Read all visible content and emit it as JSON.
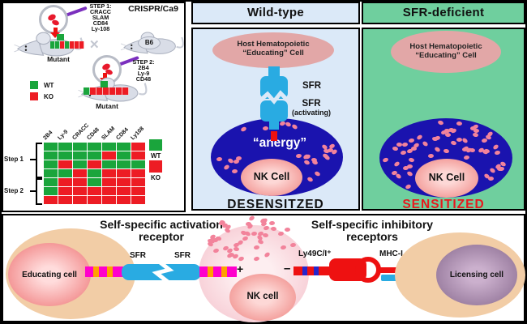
{
  "colors": {
    "wt_green": "#1aa53c",
    "ko_red": "#ed1c24",
    "receptor_blue": "#29abe2",
    "nk_blue": "#1a13ae",
    "granule_pink": "#f2839b",
    "host_cell_pink": "#e2a7a7",
    "panel_blue": "#dbe9f8",
    "panel_green": "#6fcf9e",
    "magenta": "#ff00cc",
    "stripe_orange": "#ffa200",
    "receptor_red": "#ee1111",
    "stripe_blue": "#2626cc",
    "status_red": "#e8181d",
    "cell_tan": "#f2cda6",
    "needle_purple": "#7b2fbe"
  },
  "left_panel": {
    "title": "CRISPR/Ca9",
    "step1": {
      "label": "STEP 1:",
      "genes": [
        "CRACC",
        "SLAM",
        "CD84",
        "Ly-108"
      ]
    },
    "step2": {
      "label": "STEP 2:",
      "genes": [
        "2B4",
        "Ly-9",
        "CD48"
      ]
    },
    "mutant1_label": "Mutant",
    "b6_label": "B6",
    "cross": "✕",
    "mutant2_label": "Mutant",
    "legend": {
      "wt": "WT",
      "ko": "KO"
    },
    "mouse1_bar": [
      "G",
      "G",
      "R",
      "G",
      "R",
      "R",
      "R"
    ],
    "mouse2_bar": [
      "G",
      "R",
      "R",
      "R",
      "R",
      "R",
      "R"
    ]
  },
  "chart_data": {
    "type": "heatmap",
    "columns": [
      "2B4",
      "Ly-9",
      "CRACC",
      "CD48",
      "SLAM",
      "CD84",
      "Ly108"
    ],
    "row_groups": [
      {
        "label": "Step 1",
        "rows": 4
      },
      {
        "label": "Step 2",
        "rows": 3
      }
    ],
    "matrix": [
      [
        "WT",
        "WT",
        "WT",
        "WT",
        "WT",
        "WT",
        "KO"
      ],
      [
        "WT",
        "WT",
        "WT",
        "WT",
        "KO",
        "WT",
        "KO"
      ],
      [
        "WT",
        "KO",
        "WT",
        "KO",
        "WT",
        "WT",
        "WT"
      ],
      [
        "WT",
        "WT",
        "KO",
        "WT",
        "KO",
        "KO",
        "KO"
      ],
      [
        "WT",
        "KO",
        "KO",
        "WT",
        "KO",
        "KO",
        "KO"
      ],
      [
        "WT",
        "KO",
        "KO",
        "KO",
        "KO",
        "KO",
        "KO"
      ],
      [
        "KO",
        "KO",
        "KO",
        "KO",
        "KO",
        "KO",
        "KO"
      ]
    ],
    "legend": [
      "WT",
      "KO"
    ],
    "cell_colors": {
      "WT": "#1aa53c",
      "KO": "#ed1c24"
    }
  },
  "wild_type": {
    "header": "Wild-type",
    "host_cell_line1": "Host Hematopoietic",
    "host_cell_line2": "“Educating” Cell",
    "sfr_upper": "SFR",
    "sfr_lower": "SFR",
    "sfr_lower_sub": "(activating)",
    "anergy": "“anergy”",
    "nk_cell": "NK Cell",
    "status": "DESENSITZED"
  },
  "sfr_deficient": {
    "header": "SFR-deficient",
    "host_cell_line1": "Host Hematopoietic",
    "host_cell_line2": "“Educating” Cell",
    "nk_cell": "NK Cell",
    "status": "SENSITIZED"
  },
  "bottom_panel": {
    "activation_title_line1": "Self-specific activation",
    "activation_title_line2": "receptor",
    "inhibitory_title_line1": "Self-specific inhibitory",
    "inhibitory_title_line2": "receptors",
    "educating_cell": "Educating cell",
    "sfr_left": "SFR",
    "sfr_right": "SFR",
    "plus": "+",
    "nk_cell": "NK cell",
    "minus": "–",
    "ly49_label": "Ly49C/I⁺",
    "mhc_label": "MHC-I",
    "licensing_cell": "Licensing cell"
  }
}
